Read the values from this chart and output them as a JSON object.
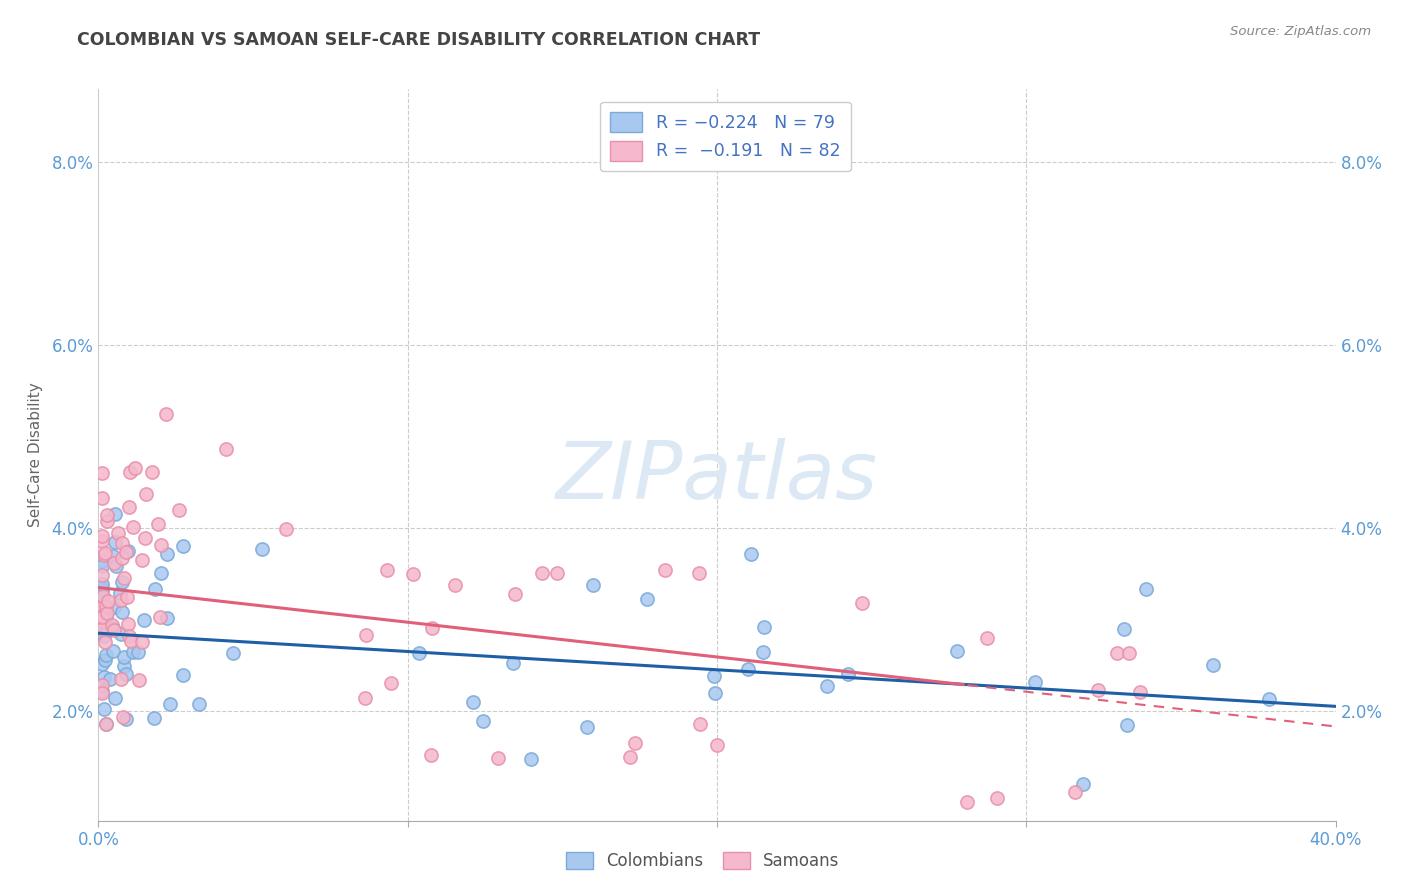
{
  "title": "COLOMBIAN VS SAMOAN SELF-CARE DISABILITY CORRELATION CHART",
  "source": "Source: ZipAtlas.com",
  "ylabel": "Self-Care Disability",
  "xlim": [
    0.0,
    0.4
  ],
  "ylim": [
    0.008,
    0.088
  ],
  "yticks": [
    0.02,
    0.04,
    0.06,
    0.08
  ],
  "ytick_labels": [
    "2.0%",
    "4.0%",
    "6.0%",
    "8.0%"
  ],
  "xticks": [
    0.0,
    0.1,
    0.2,
    0.3,
    0.4
  ],
  "xtick_labels": [
    "0.0%",
    "",
    "",
    "",
    "40.0%"
  ],
  "colombian_R": -0.224,
  "colombian_N": 79,
  "samoan_R": -0.191,
  "samoan_N": 82,
  "colombian_color": "#a8c8f0",
  "samoan_color": "#f5b8cc",
  "colombian_edge_color": "#7aaad8",
  "samoan_edge_color": "#e890a8",
  "colombian_line_color": "#1f5fa6",
  "samoan_line_color": "#e0607a",
  "background_color": "#ffffff",
  "grid_color": "#cccccc",
  "title_color": "#444444",
  "axis_color": "#5b9bd5",
  "watermark_color": "#dce9f5",
  "legend_R_color": "#4472c4",
  "col_intercept": 0.0285,
  "col_slope": -0.02,
  "sam_intercept": 0.0335,
  "sam_slope": -0.038
}
